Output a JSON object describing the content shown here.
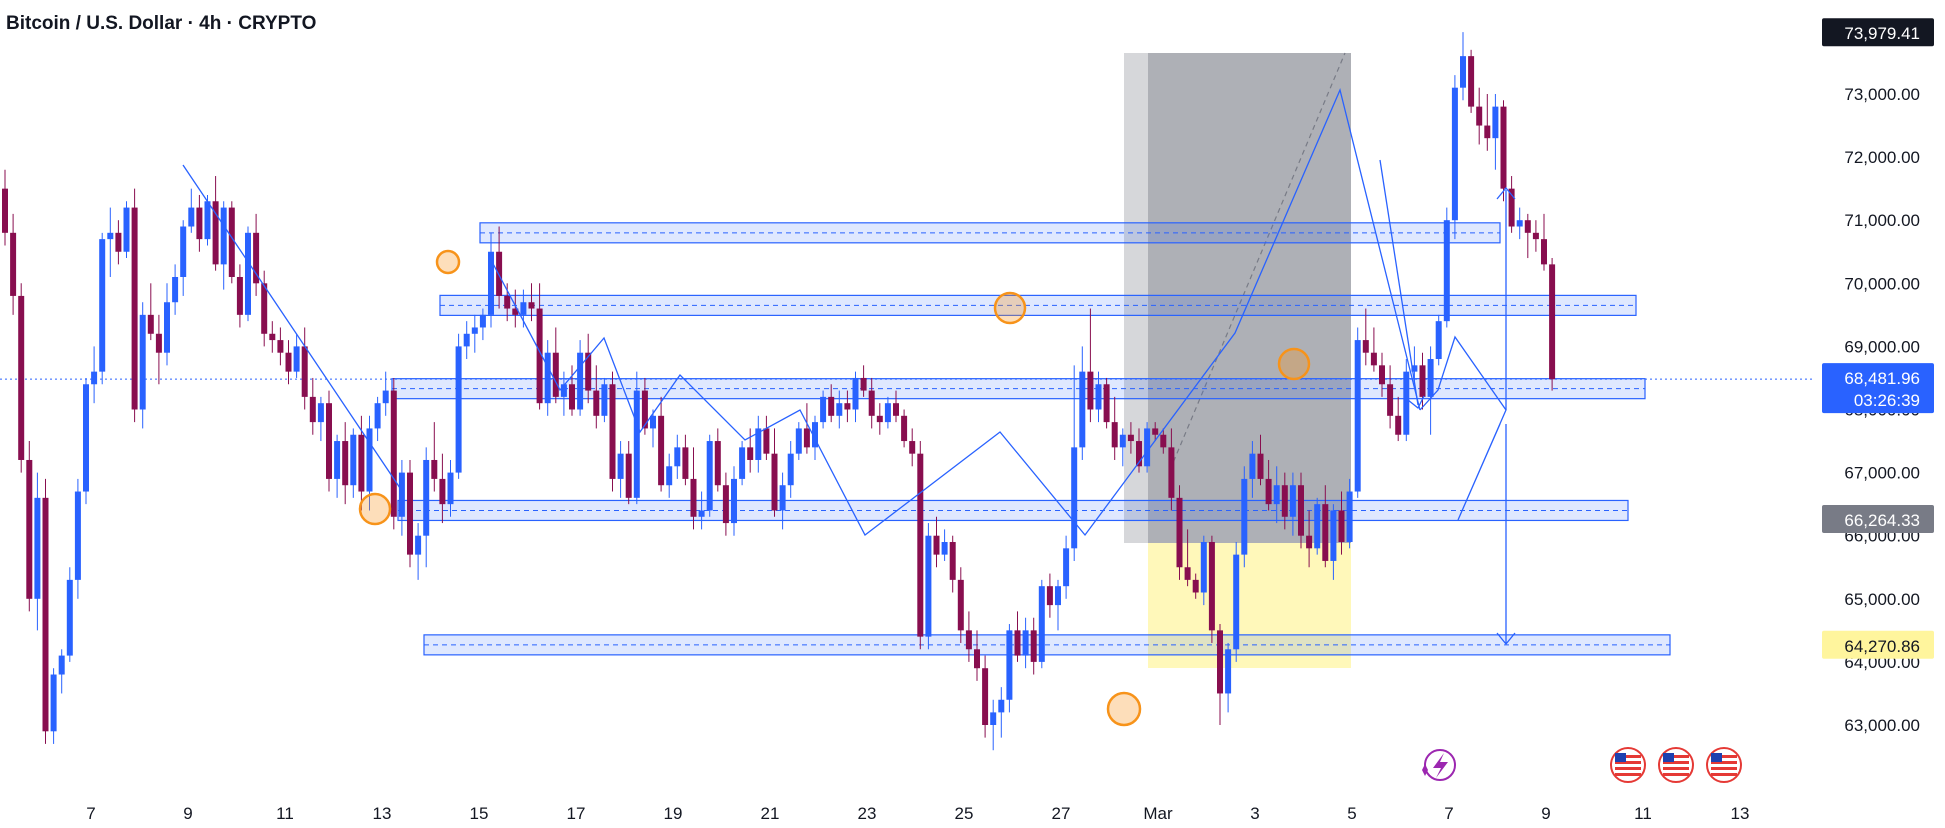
{
  "header": {
    "title": "Bitcoin / U.S. Dollar · 4h · CRYPTO"
  },
  "colors": {
    "up": "#2962ff",
    "down": "#880e4f",
    "zone_fill": "#2962ff",
    "accent": "#2962ff",
    "circle": "#f7931a",
    "target_fill": "#fff59d",
    "grey_box": "#787b86"
  },
  "icons": {
    "lightning": "lightning-icon",
    "flags": [
      "us-flag-icon",
      "us-flag-icon",
      "us-flag-icon"
    ]
  },
  "chart_data": {
    "type": "candlestick",
    "title": "Bitcoin / U.S. Dollar · 4h · CRYPTO",
    "ylim": [
      62500,
      74200
    ],
    "y_ticks": [
      "63,000.00",
      "64,000.00",
      "65,000.00",
      "66,000.00",
      "67,000.00",
      "68,000.00",
      "69,000.00",
      "70,000.00",
      "71,000.00",
      "72,000.00",
      "73,000.00"
    ],
    "y_tick_values": [
      63000,
      64000,
      65000,
      66000,
      67000,
      68000,
      69000,
      70000,
      71000,
      72000,
      73000
    ],
    "x_ticks": [
      "7",
      "9",
      "11",
      "13",
      "15",
      "17",
      "19",
      "21",
      "23",
      "25",
      "27",
      "Mar",
      "3",
      "5",
      "7",
      "9",
      "11",
      "13"
    ],
    "price_labels": [
      {
        "label": "73,979.41",
        "value": 73979.41,
        "style": "dark"
      },
      {
        "label": "68,481.96",
        "sublabel": "03:26:39",
        "value": 68481.96,
        "style": "blue"
      },
      {
        "label": "66,264.33",
        "value": 66264.33,
        "style": "grey"
      },
      {
        "label": "64,270.86",
        "value": 64270.86,
        "style": "yellow"
      }
    ],
    "zones": [
      70800,
      69650,
      68330,
      66400,
      64270
    ],
    "grid": false,
    "candles": [
      [
        71500,
        71800,
        70600,
        70800
      ],
      [
        70800,
        71100,
        69500,
        69800
      ],
      [
        69800,
        70000,
        67000,
        67200
      ],
      [
        67200,
        67500,
        64800,
        65000
      ],
      [
        65000,
        67000,
        64500,
        66600
      ],
      [
        66600,
        66900,
        62700,
        62900
      ],
      [
        62900,
        63900,
        62700,
        63800
      ],
      [
        63800,
        64200,
        63500,
        64100
      ],
      [
        64100,
        65500,
        64000,
        65300
      ],
      [
        65300,
        66900,
        65000,
        66700
      ],
      [
        66700,
        68500,
        66500,
        68400
      ],
      [
        68400,
        69000,
        68100,
        68600
      ],
      [
        68600,
        70800,
        68400,
        70700
      ],
      [
        70700,
        71200,
        70100,
        70800
      ],
      [
        70800,
        71000,
        70300,
        70500
      ],
      [
        70500,
        71300,
        70400,
        71200
      ],
      [
        71200,
        71500,
        67800,
        68000
      ],
      [
        68000,
        69700,
        67700,
        69500
      ],
      [
        69500,
        70000,
        69100,
        69200
      ],
      [
        69200,
        69500,
        68400,
        68900
      ],
      [
        68900,
        70000,
        68700,
        69700
      ],
      [
        69700,
        70300,
        69500,
        70100
      ],
      [
        70100,
        71000,
        69800,
        70900
      ],
      [
        70900,
        71500,
        70800,
        71200
      ],
      [
        71200,
        71400,
        70500,
        70700
      ],
      [
        70700,
        71400,
        70600,
        71300
      ],
      [
        71300,
        71700,
        70200,
        70300
      ],
      [
        70300,
        71300,
        69900,
        71200
      ],
      [
        71200,
        71300,
        70000,
        70100
      ],
      [
        70100,
        70300,
        69300,
        69500
      ],
      [
        69500,
        70900,
        69400,
        70800
      ],
      [
        70800,
        71100,
        69800,
        70000
      ],
      [
        70000,
        70200,
        69000,
        69200
      ],
      [
        69200,
        69400,
        68900,
        69100
      ],
      [
        69100,
        69300,
        68700,
        68900
      ],
      [
        68900,
        69100,
        68400,
        68600
      ],
      [
        68600,
        69200,
        68500,
        69000
      ],
      [
        69000,
        69300,
        68000,
        68200
      ],
      [
        68200,
        68500,
        67600,
        67800
      ],
      [
        67800,
        68200,
        67500,
        68100
      ],
      [
        68100,
        68300,
        66700,
        66900
      ],
      [
        66900,
        67600,
        66600,
        67500
      ],
      [
        67500,
        67800,
        66500,
        66800
      ],
      [
        66800,
        67700,
        66600,
        67600
      ],
      [
        67600,
        67900,
        66400,
        66700
      ],
      [
        66700,
        67900,
        66400,
        67700
      ],
      [
        67700,
        68200,
        67500,
        68100
      ],
      [
        68100,
        68600,
        67900,
        68300
      ],
      [
        68300,
        68500,
        66100,
        66300
      ],
      [
        66300,
        67200,
        66000,
        67000
      ],
      [
        67000,
        67200,
        65500,
        65700
      ],
      [
        65700,
        66200,
        65300,
        66000
      ],
      [
        66000,
        67400,
        65500,
        67200
      ],
      [
        67200,
        67800,
        66700,
        66900
      ],
      [
        66900,
        67300,
        66200,
        66500
      ],
      [
        66500,
        67200,
        66300,
        67000
      ],
      [
        67000,
        69200,
        66900,
        69000
      ],
      [
        69000,
        69400,
        68800,
        69200
      ],
      [
        69200,
        69500,
        68900,
        69300
      ],
      [
        69300,
        69600,
        69100,
        69500
      ],
      [
        69500,
        70800,
        69300,
        70500
      ],
      [
        70500,
        70900,
        69600,
        69800
      ],
      [
        69800,
        70000,
        69400,
        69600
      ],
      [
        69600,
        69900,
        69300,
        69500
      ],
      [
        69500,
        69900,
        69300,
        69700
      ],
      [
        69700,
        70000,
        69400,
        69600
      ],
      [
        69600,
        70000,
        68000,
        68100
      ],
      [
        68100,
        69100,
        67900,
        68900
      ],
      [
        68900,
        69300,
        68100,
        68200
      ],
      [
        68200,
        68600,
        67900,
        68400
      ],
      [
        68400,
        68700,
        67900,
        68000
      ],
      [
        68000,
        69100,
        67900,
        68900
      ],
      [
        68900,
        69200,
        68100,
        68300
      ],
      [
        68300,
        68700,
        67700,
        67900
      ],
      [
        67900,
        68500,
        67800,
        68400
      ],
      [
        68400,
        68600,
        66700,
        66900
      ],
      [
        66900,
        67500,
        66600,
        67300
      ],
      [
        67300,
        67500,
        66500,
        66600
      ],
      [
        66600,
        68600,
        66500,
        68300
      ],
      [
        68300,
        68500,
        67600,
        67700
      ],
      [
        67700,
        68000,
        67400,
        67900
      ],
      [
        67900,
        68200,
        66700,
        66800
      ],
      [
        66800,
        67300,
        66600,
        67100
      ],
      [
        67100,
        67600,
        66900,
        67400
      ],
      [
        67400,
        67600,
        66800,
        66900
      ],
      [
        66900,
        67400,
        66100,
        66300
      ],
      [
        66300,
        66700,
        66100,
        66400
      ],
      [
        66400,
        67600,
        66300,
        67500
      ],
      [
        67500,
        67700,
        66700,
        66800
      ],
      [
        66800,
        67000,
        66000,
        66200
      ],
      [
        66200,
        67100,
        66000,
        66900
      ],
      [
        66900,
        67500,
        66800,
        67400
      ],
      [
        67400,
        67700,
        67000,
        67200
      ],
      [
        67200,
        67900,
        67000,
        67700
      ],
      [
        67700,
        67900,
        67200,
        67300
      ],
      [
        67300,
        67700,
        66300,
        66400
      ],
      [
        66400,
        67000,
        66100,
        66800
      ],
      [
        66800,
        67500,
        66600,
        67300
      ],
      [
        67300,
        67800,
        67200,
        67700
      ],
      [
        67700,
        68100,
        67300,
        67400
      ],
      [
        67400,
        67900,
        67200,
        67800
      ],
      [
        67800,
        68300,
        67700,
        68200
      ],
      [
        68200,
        68400,
        67800,
        67900
      ],
      [
        67900,
        68300,
        67700,
        68100
      ],
      [
        68100,
        68300,
        67800,
        68000
      ],
      [
        68000,
        68600,
        67800,
        68500
      ],
      [
        68500,
        68700,
        68200,
        68300
      ],
      [
        68300,
        68500,
        67700,
        67900
      ],
      [
        67900,
        68100,
        67600,
        67800
      ],
      [
        67800,
        68200,
        67700,
        68100
      ],
      [
        68100,
        68300,
        67800,
        67900
      ],
      [
        67900,
        68000,
        67400,
        67500
      ],
      [
        67500,
        67700,
        67100,
        67300
      ],
      [
        67300,
        67500,
        64200,
        64400
      ],
      [
        64400,
        66200,
        64200,
        66000
      ],
      [
        66000,
        66300,
        65500,
        65700
      ],
      [
        65700,
        66100,
        65600,
        65900
      ],
      [
        65900,
        66000,
        65100,
        65300
      ],
      [
        65300,
        65500,
        64300,
        64500
      ],
      [
        64500,
        64800,
        64000,
        64200
      ],
      [
        64200,
        64500,
        63700,
        63900
      ],
      [
        63900,
        64100,
        62800,
        63000
      ],
      [
        63000,
        63400,
        62600,
        63200
      ],
      [
        63200,
        63600,
        62800,
        63400
      ],
      [
        63400,
        64600,
        63200,
        64500
      ],
      [
        64500,
        64800,
        64000,
        64100
      ],
      [
        64100,
        64700,
        63900,
        64500
      ],
      [
        64500,
        64700,
        63800,
        64000
      ],
      [
        64000,
        65300,
        63900,
        65200
      ],
      [
        65200,
        65400,
        64700,
        64900
      ],
      [
        64900,
        65300,
        64500,
        65200
      ],
      [
        65200,
        66000,
        65000,
        65800
      ],
      [
        65800,
        68700,
        65600,
        67400
      ],
      [
        67400,
        69000,
        67200,
        68600
      ],
      [
        68600,
        69600,
        67800,
        68000
      ],
      [
        68000,
        68600,
        67800,
        68400
      ],
      [
        68400,
        68500,
        67700,
        67800
      ],
      [
        67800,
        68200,
        67200,
        67400
      ],
      [
        67400,
        67700,
        67100,
        67600
      ],
      [
        67600,
        67800,
        67300,
        67500
      ],
      [
        67500,
        67700,
        67000,
        67100
      ],
      [
        67100,
        67800,
        67000,
        67700
      ],
      [
        67700,
        67800,
        67500,
        67600
      ],
      [
        67600,
        67700,
        67300,
        67400
      ],
      [
        67400,
        67700,
        66400,
        66600
      ],
      [
        66600,
        66800,
        65300,
        65500
      ],
      [
        65500,
        66100,
        65200,
        65300
      ],
      [
        65300,
        65400,
        65000,
        65100
      ],
      [
        65100,
        66000,
        64900,
        65900
      ],
      [
        65900,
        66000,
        64300,
        64500
      ],
      [
        64500,
        64600,
        63000,
        63500
      ],
      [
        63500,
        64300,
        63200,
        64200
      ],
      [
        64200,
        65900,
        64000,
        65700
      ],
      [
        65700,
        67100,
        65500,
        66900
      ],
      [
        66900,
        67500,
        66600,
        67300
      ],
      [
        67300,
        67600,
        66800,
        66900
      ],
      [
        66900,
        67200,
        66400,
        66500
      ],
      [
        66500,
        67100,
        66200,
        66800
      ],
      [
        66800,
        67000,
        66100,
        66300
      ],
      [
        66300,
        67000,
        66000,
        66800
      ],
      [
        66800,
        67000,
        65800,
        66000
      ],
      [
        66000,
        66400,
        65500,
        65800
      ],
      [
        65800,
        66600,
        65700,
        66500
      ],
      [
        66500,
        66800,
        65500,
        65600
      ],
      [
        65600,
        66500,
        65300,
        66400
      ],
      [
        66400,
        66700,
        65700,
        65900
      ],
      [
        65900,
        66900,
        65800,
        66700
      ],
      [
        66700,
        69300,
        66600,
        69100
      ],
      [
        69100,
        69600,
        68700,
        68900
      ],
      [
        68900,
        69300,
        68600,
        68700
      ],
      [
        68700,
        68900,
        68200,
        68400
      ],
      [
        68400,
        68700,
        67700,
        67900
      ],
      [
        67900,
        68200,
        67500,
        67600
      ],
      [
        67600,
        68800,
        67500,
        68600
      ],
      [
        68600,
        69000,
        68400,
        68700
      ],
      [
        68700,
        68900,
        68000,
        68200
      ],
      [
        68200,
        69000,
        67600,
        68800
      ],
      [
        68800,
        69500,
        68700,
        69400
      ],
      [
        69400,
        71200,
        69300,
        71000
      ],
      [
        71000,
        73300,
        70700,
        73100
      ],
      [
        73100,
        73980,
        72900,
        73600
      ],
      [
        73600,
        73700,
        72700,
        72800
      ],
      [
        72800,
        73100,
        72200,
        72500
      ],
      [
        72500,
        73000,
        72100,
        72300
      ],
      [
        72300,
        73000,
        71800,
        72800
      ],
      [
        72800,
        72900,
        71300,
        71500
      ],
      [
        71500,
        71700,
        70800,
        70900
      ],
      [
        70900,
        71200,
        70700,
        71000
      ],
      [
        71000,
        71100,
        70400,
        70800
      ],
      [
        70800,
        71000,
        70500,
        70700
      ],
      [
        70700,
        71100,
        70200,
        70300
      ],
      [
        70300,
        70400,
        68300,
        68480
      ]
    ]
  }
}
